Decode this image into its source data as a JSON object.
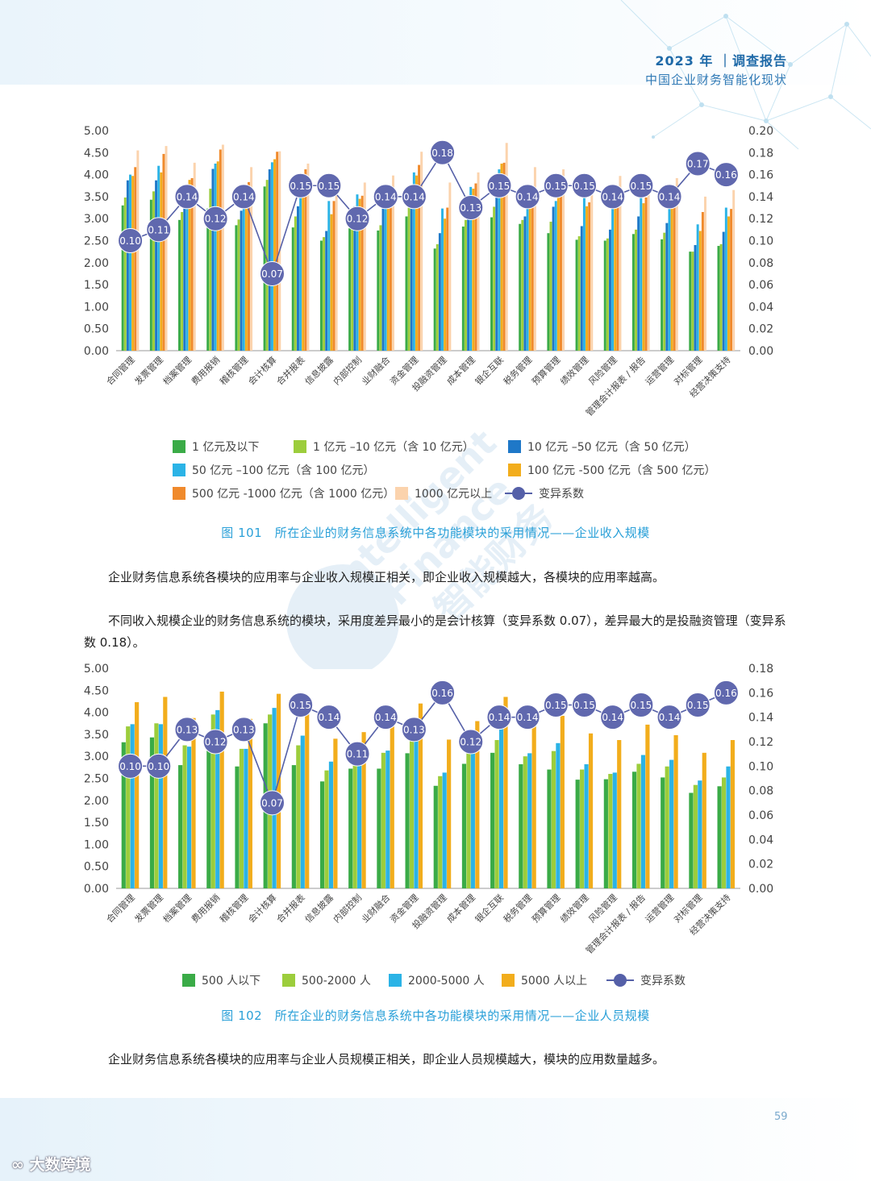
{
  "header": {
    "year_title": "2023 年 ｜调查报告",
    "subtitle": "中国企业财务智能化现状"
  },
  "watermark": {
    "line1": "Intelligent",
    "line2": "Finance",
    "line3": "智能财务"
  },
  "modules": [
    "合同管理",
    "发票管理",
    "档案管理",
    "费用报销",
    "稽核管理",
    "会计核算",
    "合并报表",
    "信息披露",
    "内部控制",
    "业财融合",
    "资金管理",
    "投融资管理",
    "成本管理",
    "银企互联",
    "税务管理",
    "预算管理",
    "绩效管理",
    "风险管理",
    "管理会计报表 / 报告",
    "运营管理",
    "对标管理",
    "经营决策支持"
  ],
  "colors": {
    "green": "#3aab47",
    "lightgreen": "#9ccd3c",
    "blue": "#1f78c8",
    "skyblue": "#2bb3e6",
    "yellow": "#f2ad1c",
    "orange": "#f08a2c",
    "peach": "#fbd3ad",
    "marker": "#5560a8",
    "caption": "#2aa0d8"
  },
  "chart_data": [
    {
      "type": "bar",
      "title": "图 101　所在企业的财务信息系统中各功能模块的采用情况——企业收入规模",
      "ylim": [
        0,
        5
      ],
      "yticks": [
        "0.00",
        "0.50",
        "1.00",
        "1.50",
        "2.00",
        "2.50",
        "3.00",
        "3.50",
        "4.00",
        "4.50",
        "5.00"
      ],
      "y2lim": [
        0,
        0.2
      ],
      "y2ticks": [
        "0.00",
        "0.02",
        "0.04",
        "0.06",
        "0.08",
        "0.10",
        "0.12",
        "0.14",
        "0.16",
        "0.18",
        "0.20"
      ],
      "series": [
        {
          "name": "1 亿元及以下",
          "color": "#3aab47",
          "values": [
            3.3,
            3.43,
            2.97,
            3.23,
            2.85,
            3.73,
            2.8,
            2.5,
            2.78,
            2.73,
            3.05,
            2.32,
            2.82,
            3.03,
            2.88,
            2.67,
            2.52,
            2.5,
            2.65,
            2.53,
            2.25,
            2.38
          ]
        },
        {
          "name": "1 亿元 –10 亿元（含 10 亿元）",
          "color": "#9ccd3c",
          "values": [
            3.48,
            3.62,
            3.15,
            3.68,
            2.98,
            3.88,
            3.05,
            2.58,
            3.05,
            2.85,
            3.25,
            2.42,
            2.97,
            3.27,
            2.97,
            2.93,
            2.6,
            2.55,
            2.75,
            2.68,
            2.25,
            2.42
          ]
        },
        {
          "name": "10 亿元 –50 亿元（含 50 亿元）",
          "color": "#1f78c8",
          "values": [
            3.87,
            3.87,
            3.28,
            4.13,
            3.18,
            4.12,
            3.28,
            2.72,
            3.28,
            3.23,
            3.48,
            2.67,
            3.3,
            3.5,
            3.05,
            3.27,
            2.83,
            2.75,
            3.05,
            2.9,
            2.4,
            2.7
          ]
        },
        {
          "name": "50 亿元 –100 亿元（含 100 亿元）",
          "color": "#2bb3e6",
          "values": [
            4.0,
            4.2,
            3.78,
            4.25,
            3.32,
            4.28,
            3.5,
            3.4,
            3.55,
            3.35,
            4.05,
            3.23,
            3.72,
            4.12,
            3.35,
            3.4,
            3.47,
            3.23,
            3.55,
            3.32,
            2.87,
            3.25
          ]
        },
        {
          "name": "100 亿元 -500 亿元（含 500 亿元）",
          "color": "#f2ad1c",
          "values": [
            3.97,
            4.05,
            3.88,
            4.3,
            3.75,
            4.35,
            3.68,
            3.1,
            3.45,
            3.52,
            3.98,
            3.0,
            3.68,
            4.25,
            3.33,
            3.6,
            3.28,
            3.35,
            3.35,
            3.33,
            2.72,
            3.05
          ]
        },
        {
          "name": "500 亿元 -1000 亿元（含 1000 亿元）",
          "color": "#f08a2c",
          "values": [
            4.17,
            4.47,
            3.92,
            4.57,
            3.83,
            4.52,
            4.12,
            3.4,
            3.52,
            3.55,
            4.22,
            3.25,
            3.8,
            4.27,
            3.72,
            3.92,
            3.37,
            3.5,
            3.48,
            3.45,
            3.15,
            3.22
          ]
        },
        {
          "name": "1000 亿元以上",
          "color": "#fbd3ad",
          "values": [
            4.55,
            4.65,
            4.27,
            4.68,
            4.17,
            4.53,
            4.25,
            3.52,
            3.82,
            3.98,
            4.52,
            3.82,
            4.05,
            4.72,
            4.17,
            4.12,
            3.85,
            3.97,
            3.78,
            3.92,
            3.5,
            3.65
          ]
        }
      ],
      "cv_name": "变异系数",
      "cv_values": [
        0.1,
        0.11,
        0.14,
        0.12,
        0.14,
        0.07,
        0.15,
        0.15,
        0.12,
        0.14,
        0.14,
        0.18,
        0.13,
        0.15,
        0.14,
        0.15,
        0.15,
        0.14,
        0.15,
        0.14,
        0.17,
        0.16
      ],
      "cv_labels": [
        "0.10",
        "0.11",
        "0.14",
        "0.12",
        "0.14",
        "0.07",
        "0.15",
        "0.15",
        "0.12",
        "0.14",
        "0.14",
        "0.18",
        "0.13",
        "0.15",
        "0.14",
        "0.15",
        "0.15",
        "0.14",
        "0.15",
        "0.14",
        "0.17",
        "0.16"
      ]
    },
    {
      "type": "bar",
      "title": "图 102　所在企业的财务信息系统中各功能模块的采用情况——企业人员规模",
      "ylim": [
        0,
        5
      ],
      "yticks": [
        "0.00",
        "0.50",
        "1.00",
        "1.50",
        "2.00",
        "2.50",
        "3.00",
        "3.50",
        "4.00",
        "4.50",
        "5.00"
      ],
      "y2lim": [
        0,
        0.18
      ],
      "y2ticks": [
        "0.00",
        "0.02",
        "0.04",
        "0.06",
        "0.08",
        "0.10",
        "0.12",
        "0.14",
        "0.16",
        "0.18"
      ],
      "series": [
        {
          "name": "500 人以下",
          "color": "#3aab47",
          "values": [
            3.32,
            3.43,
            2.8,
            3.22,
            2.77,
            3.75,
            2.8,
            2.43,
            2.72,
            2.72,
            3.07,
            2.33,
            2.83,
            3.08,
            2.82,
            2.7,
            2.47,
            2.48,
            2.65,
            2.52,
            2.17,
            2.32
          ]
        },
        {
          "name": "500-2000 人",
          "color": "#9ccd3c",
          "values": [
            3.68,
            3.75,
            3.25,
            3.95,
            3.17,
            3.95,
            3.25,
            2.68,
            2.92,
            3.08,
            3.43,
            2.55,
            3.08,
            3.37,
            3.0,
            3.12,
            2.7,
            2.6,
            2.83,
            2.77,
            2.35,
            2.52
          ]
        },
        {
          "name": "2000-5000 人",
          "color": "#2bb3e6",
          "values": [
            3.73,
            3.73,
            3.22,
            4.05,
            3.17,
            4.1,
            3.47,
            2.88,
            2.95,
            3.13,
            3.62,
            2.63,
            3.35,
            3.65,
            3.07,
            3.3,
            2.82,
            2.63,
            3.03,
            2.92,
            2.45,
            2.77
          ]
        },
        {
          "name": "5000 人以上",
          "color": "#f2ad1c",
          "values": [
            4.23,
            4.35,
            3.87,
            4.47,
            3.85,
            4.42,
            4.15,
            3.4,
            3.55,
            3.85,
            4.2,
            3.38,
            3.8,
            4.35,
            3.77,
            3.92,
            3.52,
            3.37,
            3.72,
            3.48,
            3.08,
            3.37
          ]
        }
      ],
      "cv_name": "变异系数",
      "cv_values": [
        0.1,
        0.1,
        0.13,
        0.12,
        0.13,
        0.07,
        0.15,
        0.14,
        0.11,
        0.14,
        0.13,
        0.16,
        0.12,
        0.14,
        0.14,
        0.15,
        0.15,
        0.14,
        0.15,
        0.14,
        0.15,
        0.16
      ],
      "cv_labels": [
        "0.10",
        "0.10",
        "0.13",
        "0.12",
        "0.13",
        "0.07",
        "0.15",
        "0.14",
        "0.11",
        "0.14",
        "0.13",
        "0.16",
        "0.12",
        "0.14",
        "0.14",
        "0.15",
        "0.15",
        "0.14",
        "0.15",
        "0.14",
        "0.15",
        "0.16"
      ]
    }
  ],
  "legend1": [
    "1 亿元及以下",
    "1 亿元 –10 亿元（含 10 亿元）",
    "10 亿元 –50 亿元（含 50 亿元）",
    "50 亿元 –100 亿元（含 100 亿元）",
    "100 亿元 -500 亿元（含 500 亿元）",
    "500 亿元 -1000 亿元（含 1000 亿元）",
    "1000 亿元以上",
    "变异系数"
  ],
  "legend2": [
    "500 人以下",
    "500-2000 人",
    "2000-5000 人",
    "5000 人以上",
    "变异系数"
  ],
  "captions": {
    "fig101": "图 101　所在企业的财务信息系统中各功能模块的采用情况——企业收入规模",
    "fig102": "图 102　所在企业的财务信息系统中各功能模块的采用情况——企业人员规模"
  },
  "paragraphs": {
    "p1": "企业财务信息系统各模块的应用率与企业收入规模正相关，即企业收入规模越大，各模块的应用率越高。",
    "p2": "不同收入规模企业的财务信息系统的模块，采用度差异最小的是会计核算（变异系数 0.07），差异最大的是投融资管理（变异系数 0.18）。",
    "p3": "企业财务信息系统各模块的应用率与企业人员规模正相关，即企业人员规模越大，模块的应用数量越多。"
  },
  "footer": {
    "page_number": "59",
    "logo_text": "大数跨境"
  }
}
